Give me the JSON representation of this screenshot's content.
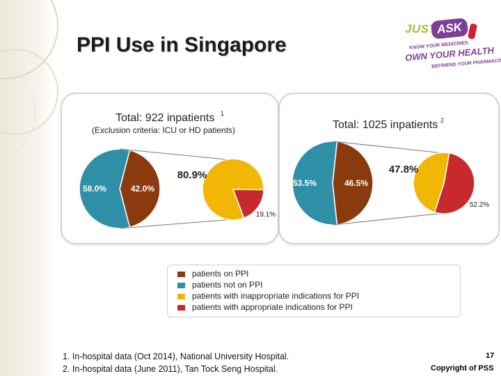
{
  "slide": {
    "title": "PPI Use in Singapore",
    "page_number": "17",
    "copyright": "Copyright of PSS",
    "footnotes": [
      "1. In-hospital data (Oct 2014), National University Hospital.",
      "2. In-hospital data (June 2011), Tan Tock Seng Hospital."
    ]
  },
  "logo": {
    "just": "JUST",
    "ask": "ASK",
    "line1": "KNOW YOUR MEDICINES",
    "line2": "OWN YOUR HEALTH",
    "line3": "BEFRIEND YOUR PHARMACIST",
    "colors": {
      "green": "#a6c032",
      "purple": "#7d3f98",
      "red": "#d11f36"
    }
  },
  "legend": [
    {
      "label": "patients on PPI",
      "color": "#8b3a0e"
    },
    {
      "label": "patients not on PPI",
      "color": "#2e8fa6"
    },
    {
      "label": "patients with inappropriate indications for PPI",
      "color": "#f2b705"
    },
    {
      "label": "patients with appropriate indications for PPI",
      "color": "#c62a2f"
    }
  ],
  "chart_data": [
    {
      "type": "pie",
      "title": "Total: 922 inpatients",
      "title_sup": "1",
      "subtitle": "(Exclusion criteria: ICU or HD patients)",
      "main_pie": {
        "slices": [
          {
            "name": "patients not on PPI",
            "value": 58.0,
            "label": "58.0%",
            "color": "#2e8fa6"
          },
          {
            "name": "patients on PPI",
            "value": 42.0,
            "label": "42.0%",
            "color": "#8b3a0e"
          }
        ]
      },
      "breakdown_pie": {
        "slices": [
          {
            "name": "patients with inappropriate indications for PPI",
            "value": 80.9,
            "label": "80.9%",
            "color": "#f2b705"
          },
          {
            "name": "patients with appropriate indications for PPI",
            "value": 19.1,
            "label": "19.1%",
            "color": "#c62a2f"
          }
        ]
      }
    },
    {
      "type": "pie",
      "title": "Total: 1025 inpatients",
      "title_sup": "2",
      "subtitle": "",
      "main_pie": {
        "slices": [
          {
            "name": "patients not on PPI",
            "value": 53.5,
            "label": "53.5%",
            "color": "#2e8fa6"
          },
          {
            "name": "patients on PPI",
            "value": 46.5,
            "label": "46.5%",
            "color": "#8b3a0e"
          }
        ]
      },
      "breakdown_pie": {
        "slices": [
          {
            "name": "patients with inappropriate indications for PPI",
            "value": 47.8,
            "label": "47.8%",
            "color": "#f2b705"
          },
          {
            "name": "patients with appropriate indications for PPI",
            "value": 52.2,
            "label": "52.2%",
            "color": "#c62a2f"
          }
        ]
      }
    }
  ]
}
